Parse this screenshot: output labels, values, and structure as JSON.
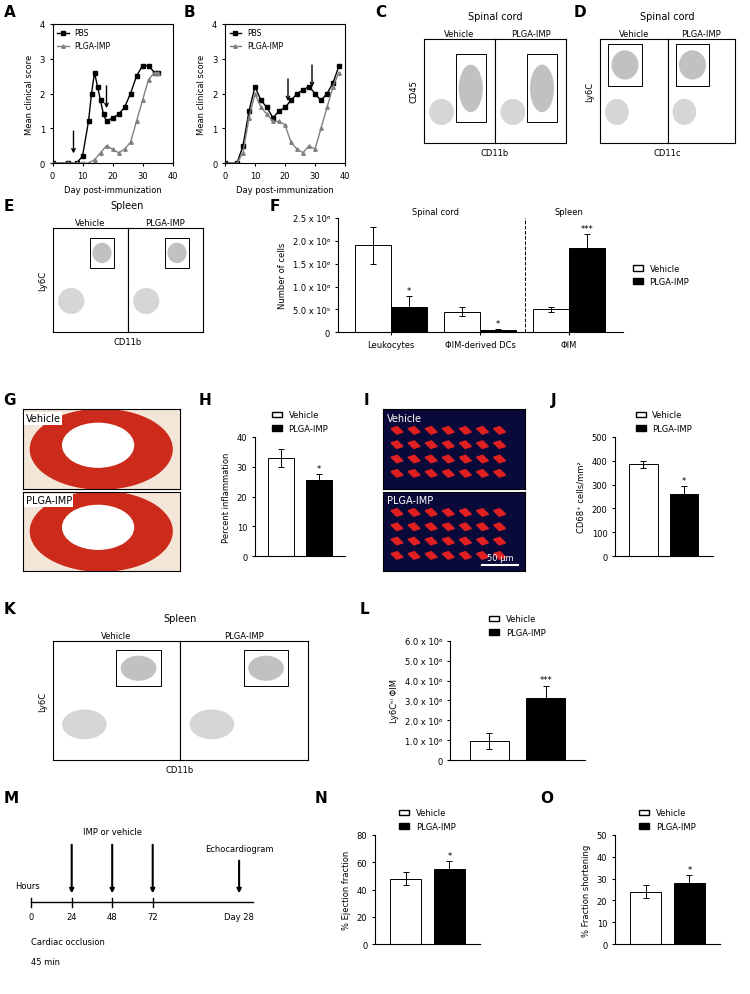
{
  "chart_data": [
    {
      "panel": "A",
      "type": "line",
      "x_label": "Day post-immunization",
      "y_label": "Mean clinical score",
      "xlim": [
        0,
        40
      ],
      "xticks": [
        0,
        10,
        20,
        30,
        40
      ],
      "ylim": [
        0,
        4
      ],
      "yticks": [
        0,
        1,
        2,
        3,
        4
      ],
      "legend": "upper left",
      "arrows": [
        {
          "x": 7,
          "y": 0.2
        },
        {
          "x": 18,
          "y": 1.5
        }
      ],
      "series": [
        {
          "name": "PBS",
          "color": "#000000",
          "marker": "square",
          "line_style": "solid",
          "x": [
            0,
            5,
            8,
            10,
            12,
            13,
            14,
            15,
            16,
            17,
            18,
            20,
            22,
            24,
            26,
            28,
            30,
            32,
            34,
            35
          ],
          "values": [
            0,
            0,
            0,
            0.2,
            1.2,
            2.0,
            2.6,
            2.2,
            1.8,
            1.4,
            1.2,
            1.3,
            1.4,
            1.6,
            2.0,
            2.5,
            2.8,
            2.8,
            2.6,
            2.6
          ]
        },
        {
          "name": "PLGA-IMP",
          "color": "#808080",
          "marker": "triangle",
          "line_style": "solid",
          "x": [
            0,
            5,
            8,
            10,
            12,
            14,
            16,
            18,
            20,
            22,
            24,
            26,
            28,
            30,
            32,
            34,
            35
          ],
          "values": [
            0,
            0,
            0,
            0,
            0,
            0.1,
            0.3,
            0.5,
            0.4,
            0.3,
            0.4,
            0.6,
            1.2,
            1.8,
            2.4,
            2.6,
            2.6
          ]
        }
      ]
    },
    {
      "panel": "B",
      "type": "line",
      "x_label": "Day post-immunization",
      "y_label": "Mean clinical score",
      "xlim": [
        0,
        40
      ],
      "xticks": [
        0,
        10,
        20,
        30,
        40
      ],
      "ylim": [
        0,
        4
      ],
      "yticks": [
        0,
        1,
        2,
        3,
        4
      ],
      "legend": "upper left",
      "arrows": [
        {
          "x": 21,
          "y": 1.7
        },
        {
          "x": 29,
          "y": 2.1
        }
      ],
      "series": [
        {
          "name": "PBS",
          "color": "#000000",
          "marker": "square",
          "line_style": "solid",
          "x": [
            0,
            4,
            6,
            8,
            10,
            12,
            14,
            16,
            18,
            20,
            22,
            24,
            26,
            28,
            30,
            32,
            34,
            36,
            38
          ],
          "values": [
            0,
            0,
            0.5,
            1.5,
            2.2,
            1.8,
            1.6,
            1.3,
            1.5,
            1.6,
            1.8,
            2.0,
            2.1,
            2.2,
            2.0,
            1.8,
            2.0,
            2.3,
            2.8
          ]
        },
        {
          "name": "PLGA-IMP",
          "color": "#808080",
          "marker": "triangle",
          "line_style": "solid",
          "x": [
            0,
            4,
            6,
            8,
            10,
            12,
            14,
            16,
            18,
            20,
            22,
            24,
            26,
            28,
            30,
            32,
            34,
            36,
            38
          ],
          "values": [
            0,
            0,
            0.3,
            1.3,
            2.0,
            1.6,
            1.4,
            1.2,
            1.2,
            1.1,
            0.6,
            0.4,
            0.3,
            0.5,
            0.4,
            1.0,
            1.6,
            2.2,
            2.6
          ]
        }
      ]
    },
    {
      "panel": "C",
      "type": "flow",
      "title": "Spinal cord",
      "subtitles": [
        "Vehicle",
        "PLGA-IMP"
      ],
      "x_label": "CD11b",
      "y_label": "CD45",
      "tick_labels": false
    },
    {
      "panel": "D",
      "type": "flow",
      "title": "Spinal cord",
      "subtitles": [
        "Vehicle",
        "PLGA-IMP"
      ],
      "x_label": "CD11c",
      "y_label": "Ly6C",
      "tick_labels": false
    },
    {
      "panel": "E",
      "type": "flow",
      "title": "Spleen",
      "subtitles": [
        "Vehicle",
        "PLGA-IMP"
      ],
      "x_label": "CD11b",
      "y_label": "Ly6C",
      "tick_labels": false
    },
    {
      "panel": "F",
      "type": "bar",
      "y_label": "Number of cells",
      "legend": "right",
      "tick_labels": true,
      "categories": [
        "Leukocytes",
        "ΦIM-derived DCs",
        "ΦIM"
      ],
      "groups": [
        {
          "name": "Spinal cord",
          "categories": [
            "Leukocytes",
            "ΦIM-derived DCs"
          ]
        },
        {
          "name": "Spleen",
          "categories": [
            "ΦIM"
          ]
        }
      ],
      "ylim": [
        0,
        2500000
      ],
      "yticks": [
        {
          "value": 0,
          "label": "0"
        },
        {
          "value": 500000,
          "label": "5.0 x 10⁵"
        },
        {
          "value": 1000000,
          "label": "1.0 x 10⁶"
        },
        {
          "value": 1500000,
          "label": "1.5 x 10⁶"
        },
        {
          "value": 2000000,
          "label": "2.0 x 10⁶"
        },
        {
          "value": 2500000,
          "label": "2.5 x 10⁶"
        }
      ],
      "series": [
        {
          "name": "Vehicle",
          "color": "#ffffff",
          "values": [
            1900000,
            450000,
            500000
          ],
          "errors": [
            400000,
            100000,
            50000
          ],
          "significance": [
            null,
            null,
            null
          ]
        },
        {
          "name": "PLGA-IMP",
          "color": "#000000",
          "values": [
            550000,
            50000,
            1850000
          ],
          "errors": [
            250000,
            20000,
            300000
          ],
          "significance": [
            "*",
            "*",
            "***"
          ]
        }
      ]
    },
    {
      "panel": "G",
      "type": "image",
      "labels": [
        "Vehicle",
        "PLGA-IMP"
      ]
    },
    {
      "panel": "H",
      "type": "bar",
      "y_label": "Percent inflammation",
      "legend": "top",
      "tick_labels": "y",
      "ylim": [
        0,
        40
      ],
      "yticks": [
        0,
        10,
        20,
        30,
        40
      ],
      "series": [
        {
          "name": "Vehicle",
          "color": "#ffffff",
          "values": [
            33
          ],
          "errors": [
            3
          ],
          "significance": [
            null
          ]
        },
        {
          "name": "PLGA-IMP",
          "color": "#000000",
          "values": [
            25.5
          ],
          "errors": [
            2
          ],
          "significance": [
            "*"
          ]
        }
      ]
    },
    {
      "panel": "I",
      "type": "image",
      "labels": [
        "Vehicle",
        "PLGA-IMP"
      ],
      "scale_bar": "50 μm"
    },
    {
      "panel": "J",
      "type": "bar",
      "y_label": "CD68⁺ cells/mm²",
      "legend": "top",
      "tick_labels": "y",
      "ylim": [
        0,
        500
      ],
      "yticks": [
        0,
        100,
        200,
        300,
        400,
        500
      ],
      "series": [
        {
          "name": "Vehicle",
          "color": "#ffffff",
          "values": [
            385
          ],
          "errors": [
            15
          ],
          "significance": [
            null
          ]
        },
        {
          "name": "PLGA-IMP",
          "color": "#000000",
          "values": [
            262
          ],
          "errors": [
            30
          ],
          "significance": [
            "*"
          ]
        }
      ]
    },
    {
      "panel": "K",
      "type": "flow",
      "title": "Spleen",
      "subtitles": [
        "Vehicle",
        "PLGA-IMP"
      ],
      "x_label": "CD11b",
      "y_label": "Ly6C",
      "tick_labels": false
    },
    {
      "panel": "L",
      "type": "bar",
      "y_label": "Ly6Cʰⁱ ΦIM",
      "legend": "top",
      "tick_labels": "y",
      "ylim": [
        0,
        6000000
      ],
      "yticks": [
        {
          "value": 0,
          "label": "0"
        },
        {
          "value": 1000000,
          "label": "1.0 x 10⁶"
        },
        {
          "value": 2000000,
          "label": "2.0 x 10⁶"
        },
        {
          "value": 3000000,
          "label": "3.0 x 10⁶"
        },
        {
          "value": 4000000,
          "label": "4.0 x 10⁶"
        },
        {
          "value": 5000000,
          "label": "5.0 x 10⁶"
        },
        {
          "value": 6000000,
          "label": "6.0 x 10⁶"
        }
      ],
      "series": [
        {
          "name": "Vehicle",
          "color": "#ffffff",
          "values": [
            950000
          ],
          "errors": [
            400000
          ],
          "significance": [
            null
          ]
        },
        {
          "name": "PLGA-IMP",
          "color": "#000000",
          "values": [
            3100000
          ],
          "errors": [
            650000
          ],
          "significance": [
            "***"
          ]
        }
      ]
    },
    {
      "panel": "M",
      "type": "timeline",
      "axis_label": "Hours",
      "ticks": [
        0,
        24,
        48,
        72
      ],
      "dose_ticks": [
        24,
        48,
        72
      ],
      "dose_label": "IMP or vehicle",
      "end_label": "Day 28",
      "end_event": "Echocardiogram",
      "start_event": "Cardiac occlusion",
      "start_duration": "45 min"
    },
    {
      "panel": "N",
      "type": "bar",
      "y_label": "% Ejection fraction",
      "legend": "top",
      "tick_labels": "y",
      "ylim": [
        0,
        80
      ],
      "yticks": [
        0,
        20,
        40,
        60,
        80
      ],
      "series": [
        {
          "name": "Vehicle",
          "color": "#ffffff",
          "values": [
            48
          ],
          "errors": [
            5
          ],
          "significance": [
            null
          ]
        },
        {
          "name": "PLGA-IMP",
          "color": "#000000",
          "values": [
            55
          ],
          "errors": [
            6
          ],
          "significance": [
            "*"
          ]
        }
      ]
    },
    {
      "panel": "O",
      "type": "bar",
      "y_label": "% Fraction shortening",
      "legend": "top",
      "tick_labels": "y",
      "ylim": [
        0,
        50
      ],
      "yticks": [
        0,
        10,
        20,
        30,
        40,
        50
      ],
      "series": [
        {
          "name": "Vehicle",
          "color": "#ffffff",
          "values": [
            24
          ],
          "errors": [
            3
          ],
          "significance": [
            null
          ]
        },
        {
          "name": "PLGA-IMP",
          "color": "#000000",
          "values": [
            28
          ],
          "errors": [
            3.5
          ],
          "significance": [
            "*"
          ]
        }
      ]
    }
  ]
}
